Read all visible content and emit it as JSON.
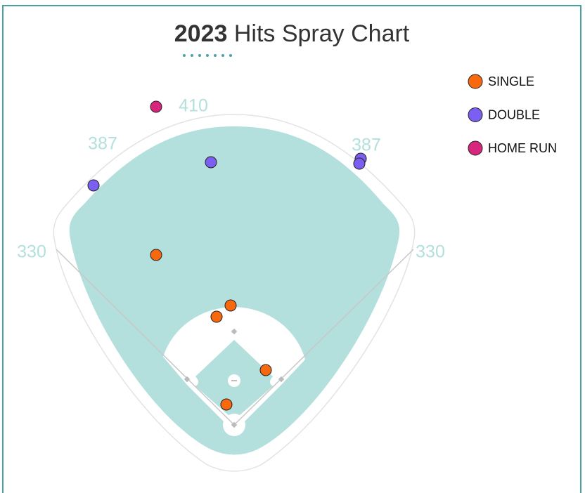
{
  "chart_data": {
    "type": "scatter",
    "title": [
      "2023",
      "Hits Spray Chart"
    ],
    "wall_distances": [
      330,
      387,
      410,
      387,
      330
    ],
    "xlim": [
      -333,
      499
    ],
    "ylim": [
      -97,
      605
    ],
    "legend": "top-right",
    "series": [
      {
        "name": "SINGLE",
        "color": "#f7680f",
        "x": [
          -111,
          -5,
          -25,
          45,
          -11
        ],
        "values": [
          242,
          170,
          154,
          78,
          29
        ]
      },
      {
        "name": "DOUBLE",
        "color": "#7b5ff0",
        "x": [
          -200,
          -33,
          180,
          178
        ],
        "values": [
          341,
          374,
          379,
          372
        ]
      },
      {
        "name": "HOME RUN",
        "color": "#d8257d",
        "x": [
          -111
        ],
        "values": [
          453
        ]
      }
    ]
  }
}
